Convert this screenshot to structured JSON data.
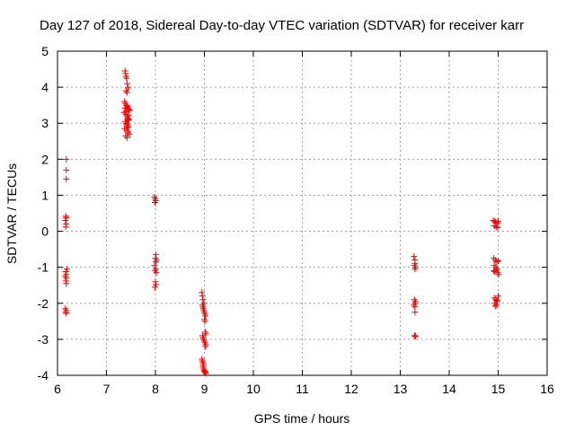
{
  "colors": {
    "series": "#ff0000",
    "grid": "#a0a0a0",
    "axis": "#000000",
    "background": "#ffffff"
  },
  "chart_data": {
    "type": "scatter",
    "title": "Day 127 of 2018, Sidereal Day-to-day VTEC variation (SDTVAR) for receiver karr",
    "xlabel": "GPS time / hours",
    "ylabel": "SDTVAR / TECUs",
    "xlim": [
      6,
      16
    ],
    "ylim": [
      -4,
      5
    ],
    "xticks": [
      "6",
      "7",
      "8",
      "9",
      "10",
      "11",
      "12",
      "13",
      "14",
      "15",
      "16"
    ],
    "yticks": [
      "-4",
      "-3",
      "-2",
      "-1",
      "0",
      "1",
      "2",
      "3",
      "4",
      "5"
    ],
    "grid": true,
    "marker": "plus",
    "series": [
      {
        "name": "SDTVAR",
        "x": [
          6.18,
          6.18,
          6.18,
          6.17,
          6.18,
          6.16,
          6.18,
          6.17,
          6.19,
          6.17,
          6.18,
          6.16,
          6.18,
          6.17,
          6.18,
          6.16,
          6.18,
          6.17,
          6.18,
          7.38,
          7.39,
          7.4,
          7.41,
          7.42,
          7.44,
          7.4,
          7.42,
          7.37,
          7.38,
          7.41,
          7.43,
          7.45,
          7.47,
          7.36,
          7.39,
          7.42,
          7.44,
          7.46,
          7.38,
          7.4,
          7.43,
          7.45,
          7.37,
          7.41,
          7.44,
          7.47,
          7.39,
          7.42,
          7.46,
          7.38,
          7.4,
          7.43,
          7.45,
          7.41,
          7.44,
          7.42,
          7.43,
          7.98,
          8.0,
          8.01,
          7.99,
          8.01,
          8.0,
          8.02,
          7.98,
          8.01,
          7.99,
          8.02,
          8.0,
          8.01,
          7.99,
          8.01,
          8.95,
          8.96,
          8.97,
          8.96,
          8.97,
          8.98,
          8.99,
          9.0,
          9.01,
          9.02,
          9.0,
          9.01,
          9.02,
          9.03,
          8.96,
          8.97,
          8.98,
          9.0,
          9.01,
          9.03,
          9.02,
          8.95,
          8.96,
          8.97,
          8.98,
          8.97,
          8.98,
          8.99,
          9.0,
          9.01,
          9.02,
          9.03,
          8.99,
          13.28,
          13.3,
          13.3,
          13.29,
          13.31,
          13.3,
          13.29,
          13.31,
          13.3,
          13.28,
          13.3,
          13.3,
          13.29,
          13.31,
          13.3,
          14.9,
          14.93,
          14.95,
          14.98,
          15.0,
          14.92,
          14.96,
          14.99,
          14.91,
          14.94,
          14.97,
          15.0,
          14.92,
          14.95,
          14.98,
          14.91,
          14.93,
          14.96,
          14.99,
          15.01,
          14.92,
          14.95,
          14.98,
          14.93,
          14.96,
          15.0,
          14.94,
          14.97
        ],
        "y": [
          2.0,
          1.7,
          1.45,
          0.42,
          0.38,
          0.3,
          0.2,
          0.12,
          -1.05,
          -1.12,
          -1.2,
          -1.25,
          -1.3,
          -1.38,
          -1.45,
          -2.15,
          -2.2,
          -2.25,
          -2.28,
          4.45,
          4.38,
          4.3,
          4.25,
          4.1,
          3.98,
          3.9,
          3.85,
          3.6,
          3.55,
          3.5,
          3.45,
          3.4,
          3.35,
          3.3,
          3.25,
          3.2,
          3.15,
          3.1,
          3.05,
          3.0,
          2.95,
          2.9,
          2.85,
          2.8,
          2.75,
          2.7,
          2.65,
          2.6,
          3.38,
          3.42,
          3.32,
          3.12,
          3.22,
          2.98,
          3.08,
          3.48,
          2.88,
          0.95,
          0.9,
          0.85,
          0.8,
          -0.65,
          -0.75,
          -0.8,
          -0.95,
          -1.05,
          -1.1,
          -1.15,
          -1.4,
          -1.48,
          -1.55,
          -0.85,
          -1.7,
          -1.8,
          -1.9,
          -2.05,
          -2.1,
          -2.15,
          -2.2,
          -2.25,
          -2.3,
          -2.35,
          -2.45,
          -2.5,
          -2.8,
          -2.85,
          -2.9,
          -2.95,
          -3.0,
          -3.05,
          -3.1,
          -3.15,
          -3.2,
          -3.55,
          -3.6,
          -3.65,
          -3.7,
          -3.75,
          -3.8,
          -3.85,
          -3.88,
          -3.9,
          -3.92,
          -3.95,
          -2.0,
          -0.7,
          -0.8,
          -0.9,
          -0.95,
          -1.0,
          -1.05,
          -1.9,
          -1.95,
          -2.0,
          -2.05,
          -2.1,
          -2.25,
          -2.9,
          -2.92,
          -2.9,
          0.3,
          0.28,
          0.25,
          0.22,
          0.28,
          0.15,
          0.12,
          0.1,
          -0.75,
          -0.8,
          -0.85,
          -0.82,
          -0.95,
          -1.0,
          -1.05,
          -1.1,
          -1.12,
          -1.08,
          -1.15,
          -1.2,
          -1.85,
          -1.9,
          -1.95,
          -2.0,
          -2.05,
          -1.8,
          -2.08,
          -1.92
        ]
      }
    ]
  }
}
